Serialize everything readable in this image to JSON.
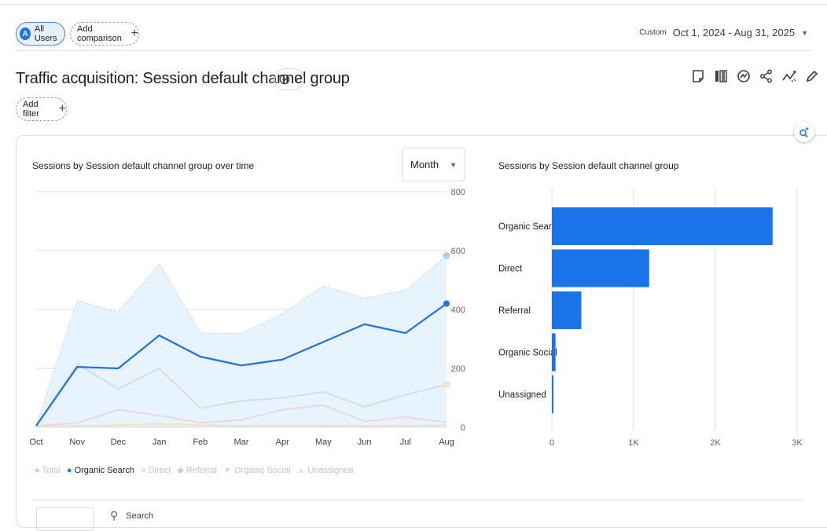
{
  "header": {
    "segment_chip": {
      "avatar": "A",
      "label": "All Users"
    },
    "comparison_chip": {
      "label": "Add comparison"
    },
    "date": {
      "preset": "Custom",
      "range": "Oct 1, 2024 - Aug 31, 2025"
    }
  },
  "report": {
    "title": "Traffic acquisition: Session default channel group",
    "filter_chip": "Add filter",
    "toolbar_icons": [
      "report-icon",
      "compare-columns-icon",
      "insights-icon",
      "share-icon",
      "trend-icon",
      "edit-icon"
    ]
  },
  "line_panel": {
    "title": "Sessions by Session default channel group over time",
    "granularity": "Month",
    "legend": [
      {
        "name": "Total",
        "active": false
      },
      {
        "name": "Organic Search",
        "active": true
      },
      {
        "name": "Direct",
        "active": false
      },
      {
        "name": "Referral",
        "active": false
      },
      {
        "name": "Organic Social",
        "active": false
      },
      {
        "name": "Unassigned",
        "active": false
      }
    ]
  },
  "bar_panel": {
    "title": "Sessions by Session default channel group"
  },
  "table": {
    "search_placeholder": "Search"
  },
  "colors": {
    "accent": "#1a73e8",
    "total_fill": "#e3f2fd",
    "grid": "#e0e0e0"
  },
  "chart_data": [
    {
      "type": "line",
      "x": [
        "Oct",
        "Nov",
        "Dec",
        "Jan",
        "Feb",
        "Mar",
        "Apr",
        "May",
        "Jun",
        "Jul",
        "Aug"
      ],
      "ylim": [
        0,
        800
      ],
      "yticks": [
        0,
        200,
        400,
        600,
        800
      ],
      "series": [
        {
          "name": "Total",
          "values": [
            5,
            430,
            390,
            555,
            320,
            318,
            385,
            480,
            438,
            465,
            583
          ]
        },
        {
          "name": "Organic Search",
          "values": [
            5,
            205,
            200,
            312,
            240,
            210,
            230,
            290,
            350,
            320,
            420
          ]
        },
        {
          "name": "Direct",
          "values": [
            5,
            215,
            130,
            200,
            65,
            90,
            100,
            120,
            70,
            110,
            145
          ]
        },
        {
          "name": "Referral",
          "values": [
            5,
            15,
            60,
            40,
            15,
            25,
            60,
            75,
            20,
            35,
            18
          ]
        },
        {
          "name": "Organic Social",
          "values": [
            2,
            5,
            8,
            12,
            8,
            5,
            6,
            6,
            4,
            5,
            8
          ]
        },
        {
          "name": "Unassigned",
          "values": [
            1,
            2,
            2,
            3,
            2,
            2,
            3,
            2,
            2,
            2,
            2
          ]
        }
      ]
    },
    {
      "type": "bar",
      "orientation": "horizontal",
      "categories": [
        "Organic Search",
        "Direct",
        "Referral",
        "Organic Social",
        "Unassigned"
      ],
      "values": [
        2700,
        1190,
        360,
        45,
        12
      ],
      "xlim": [
        0,
        3000
      ],
      "xtick_labels": [
        "0",
        "1K",
        "2K",
        "3K"
      ]
    }
  ]
}
